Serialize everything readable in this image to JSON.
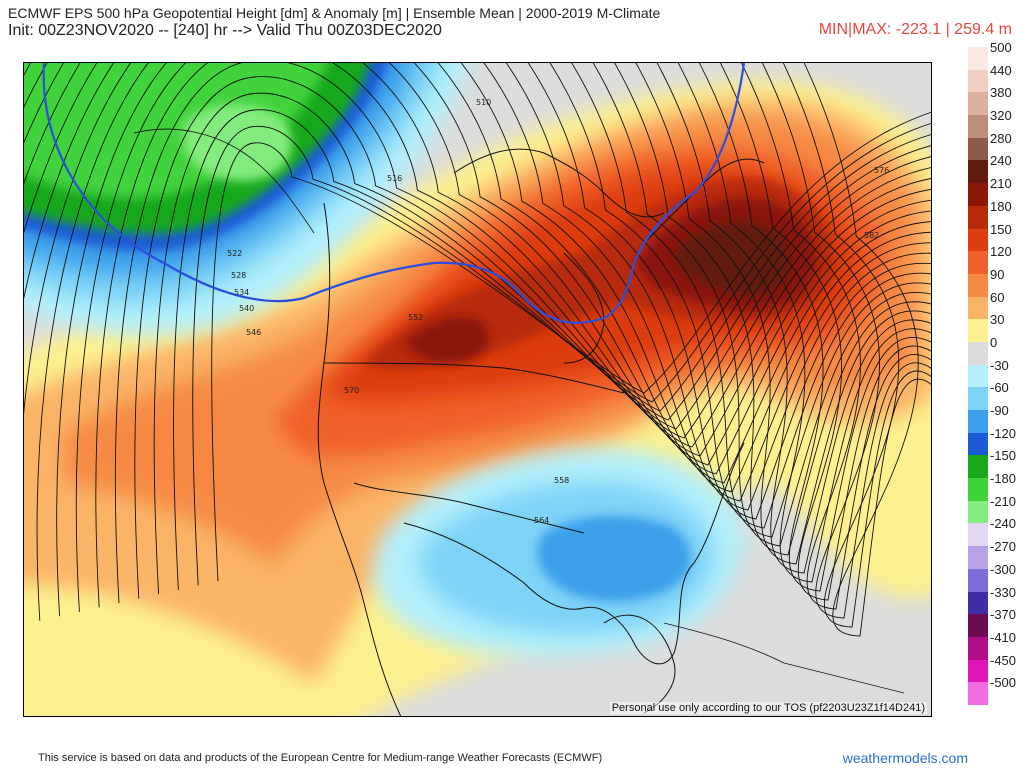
{
  "header": {
    "title_line1": "ECMWF EPS 500 hPa Geopotential Height [dm] & Anomaly [m] | Ensemble Mean | 2000-2019 M-Climate",
    "title_line2": "Init: 00Z23NOV2020 -- [240] hr --> Valid Thu 00Z03DEC2020",
    "minmax": "MIN|MAX: -223.1 | 259.4 m"
  },
  "map": {
    "tos_text": "Personal use only according to our TOS (pf2203U23Z1f14D241)",
    "contour_labels": [
      "510",
      "516",
      "522",
      "528",
      "534",
      "540",
      "546",
      "552",
      "558",
      "564",
      "570",
      "576",
      "582"
    ]
  },
  "legend": {
    "entries": [
      {
        "label": "500",
        "color": "#fbe9e4"
      },
      {
        "label": "440",
        "color": "#f2cfc2"
      },
      {
        "label": "380",
        "color": "#deb19e"
      },
      {
        "label": "320",
        "color": "#bf8e78"
      },
      {
        "label": "280",
        "color": "#8f5a48"
      },
      {
        "label": "240",
        "color": "#621c0d"
      },
      {
        "label": "210",
        "color": "#8b1707"
      },
      {
        "label": "180",
        "color": "#b72a0a"
      },
      {
        "label": "150",
        "color": "#dd3d10"
      },
      {
        "label": "120",
        "color": "#f0602a"
      },
      {
        "label": "90",
        "color": "#f68a45"
      },
      {
        "label": "60",
        "color": "#fab466"
      },
      {
        "label": "30",
        "color": "#fdf08f"
      },
      {
        "label": "0",
        "color": "#dcdcdc"
      },
      {
        "label": "-30",
        "color": "#b4effc"
      },
      {
        "label": "-60",
        "color": "#7fd3f6"
      },
      {
        "label": "-90",
        "color": "#3ea0ec"
      },
      {
        "label": "-120",
        "color": "#1d5bd6"
      },
      {
        "label": "-150",
        "color": "#18a81b"
      },
      {
        "label": "-180",
        "color": "#3fd33a"
      },
      {
        "label": "-210",
        "color": "#84ec7e"
      },
      {
        "label": "-240",
        "color": "#e3d8f2"
      },
      {
        "label": "-270",
        "color": "#b7a3e6"
      },
      {
        "label": "-300",
        "color": "#7f6cd6"
      },
      {
        "label": "-330",
        "color": "#3e2fa6"
      },
      {
        "label": "-370",
        "color": "#6c0a52"
      },
      {
        "label": "-410",
        "color": "#b00d86"
      },
      {
        "label": "-450",
        "color": "#e017b8"
      },
      {
        "label": "-500",
        "color": "#f36ce0"
      }
    ]
  },
  "footer": {
    "disclaimer": "This service is based on data and products of the European Centre for Medium-range Weather Forecasts (ECMWF)",
    "brand": "weathermodels.com"
  }
}
